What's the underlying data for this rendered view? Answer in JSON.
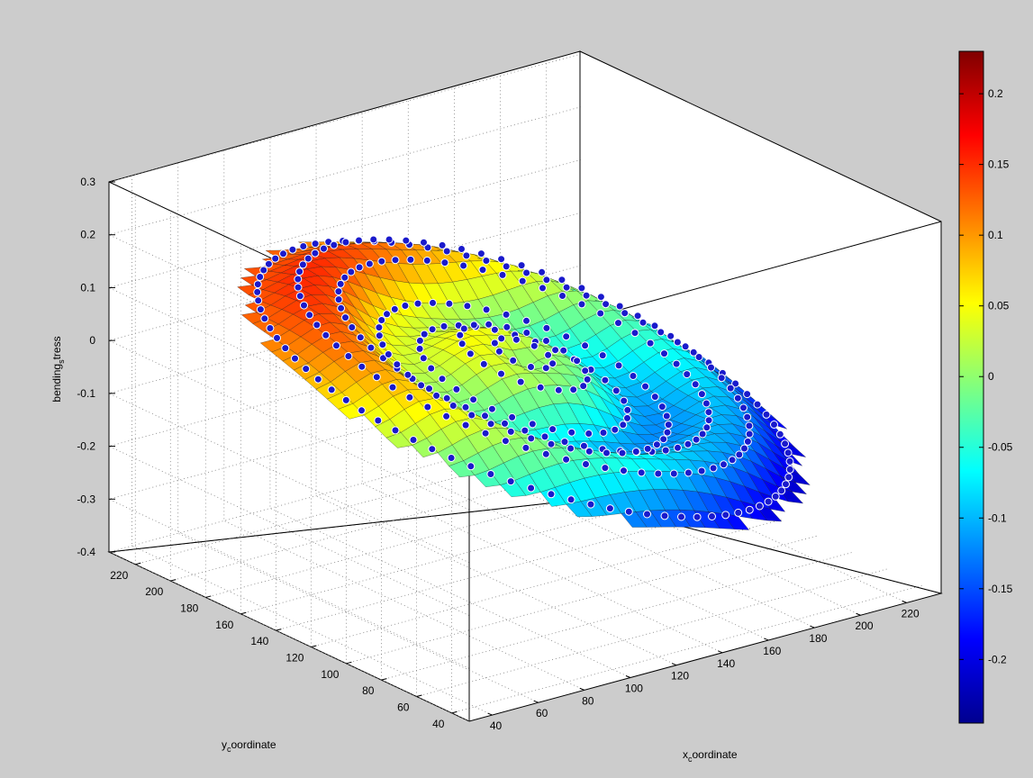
{
  "chart_data": {
    "type": "surface3d",
    "title": "",
    "zlabel": {
      "main": "bending",
      "sub": "s",
      "rest": "tress"
    },
    "xlabel": {
      "main": "x",
      "sub": "c",
      "rest": "oordinate"
    },
    "ylabel": {
      "main": "y",
      "sub": "c",
      "rest": "oordinate"
    },
    "zlim": [
      -0.4,
      0.3
    ],
    "xlim": [
      30,
      235
    ],
    "ylim": [
      30,
      235
    ],
    "z_ticks": [
      "0.3",
      "0.2",
      "0.1",
      "0",
      "-0.1",
      "-0.2",
      "-0.3",
      "-0.4"
    ],
    "x_ticks": [
      "40",
      "60",
      "80",
      "100",
      "120",
      "140",
      "160",
      "180",
      "200",
      "220"
    ],
    "y_ticks": [
      "40",
      "60",
      "80",
      "100",
      "120",
      "140",
      "160",
      "180",
      "200",
      "220"
    ],
    "grid": true,
    "colormap": "jet",
    "marker_color": "#1a1acc",
    "surface": {
      "z_high_corner": 0.22,
      "z_low_corner": -0.24,
      "data_markers": "concentric rings of sample points over the surface"
    },
    "colorbar": {
      "range": [
        -0.245,
        0.23
      ],
      "ticks": [
        "0.2",
        "0.15",
        "0.1",
        "0.05",
        "0",
        "-0.05",
        "-0.1",
        "-0.15",
        "-0.2"
      ],
      "position": "right"
    }
  }
}
